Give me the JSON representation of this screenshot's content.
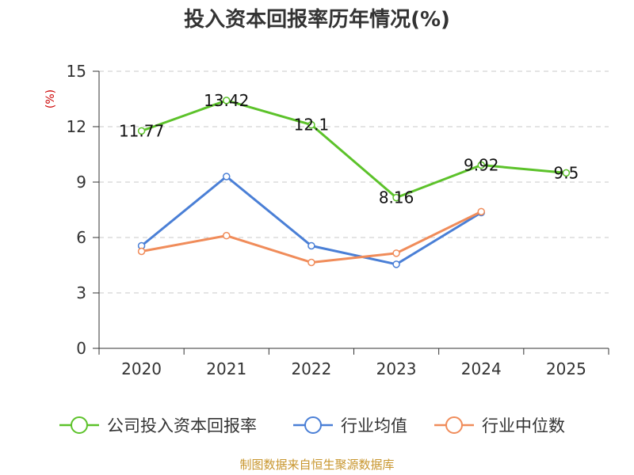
{
  "chart_data": {
    "type": "line",
    "title": "投入资本回报率历年情况(%)",
    "ylabel": "(%)",
    "xlabel": "",
    "ylim": [
      0,
      15
    ],
    "yticks": [
      0,
      3,
      6,
      9,
      12,
      15
    ],
    "grid": true,
    "legend_position": "bottom",
    "categories": [
      "2020",
      "2021",
      "2022",
      "2023",
      "2024",
      "2025"
    ],
    "series": [
      {
        "name": "公司投入资本回报率",
        "color": "#5cc22a",
        "values": [
          11.77,
          13.42,
          12.1,
          8.16,
          9.92,
          9.5
        ],
        "labels": [
          "11.77",
          "13.42",
          "12.1",
          "8.16",
          "9.92",
          "9.5"
        ]
      },
      {
        "name": "行业均值",
        "color": "#4a7fd6",
        "values": [
          5.55,
          9.3,
          5.55,
          4.55,
          7.35,
          null
        ]
      },
      {
        "name": "行业中位数",
        "color": "#f08c5a",
        "values": [
          5.25,
          6.1,
          4.65,
          5.15,
          7.4,
          null
        ]
      }
    ],
    "source": "制图数据来自恒生聚源数据库"
  },
  "colors": {
    "ylabel": "#cc0000",
    "grid": "#c8c8c8",
    "axis": "#333333"
  }
}
